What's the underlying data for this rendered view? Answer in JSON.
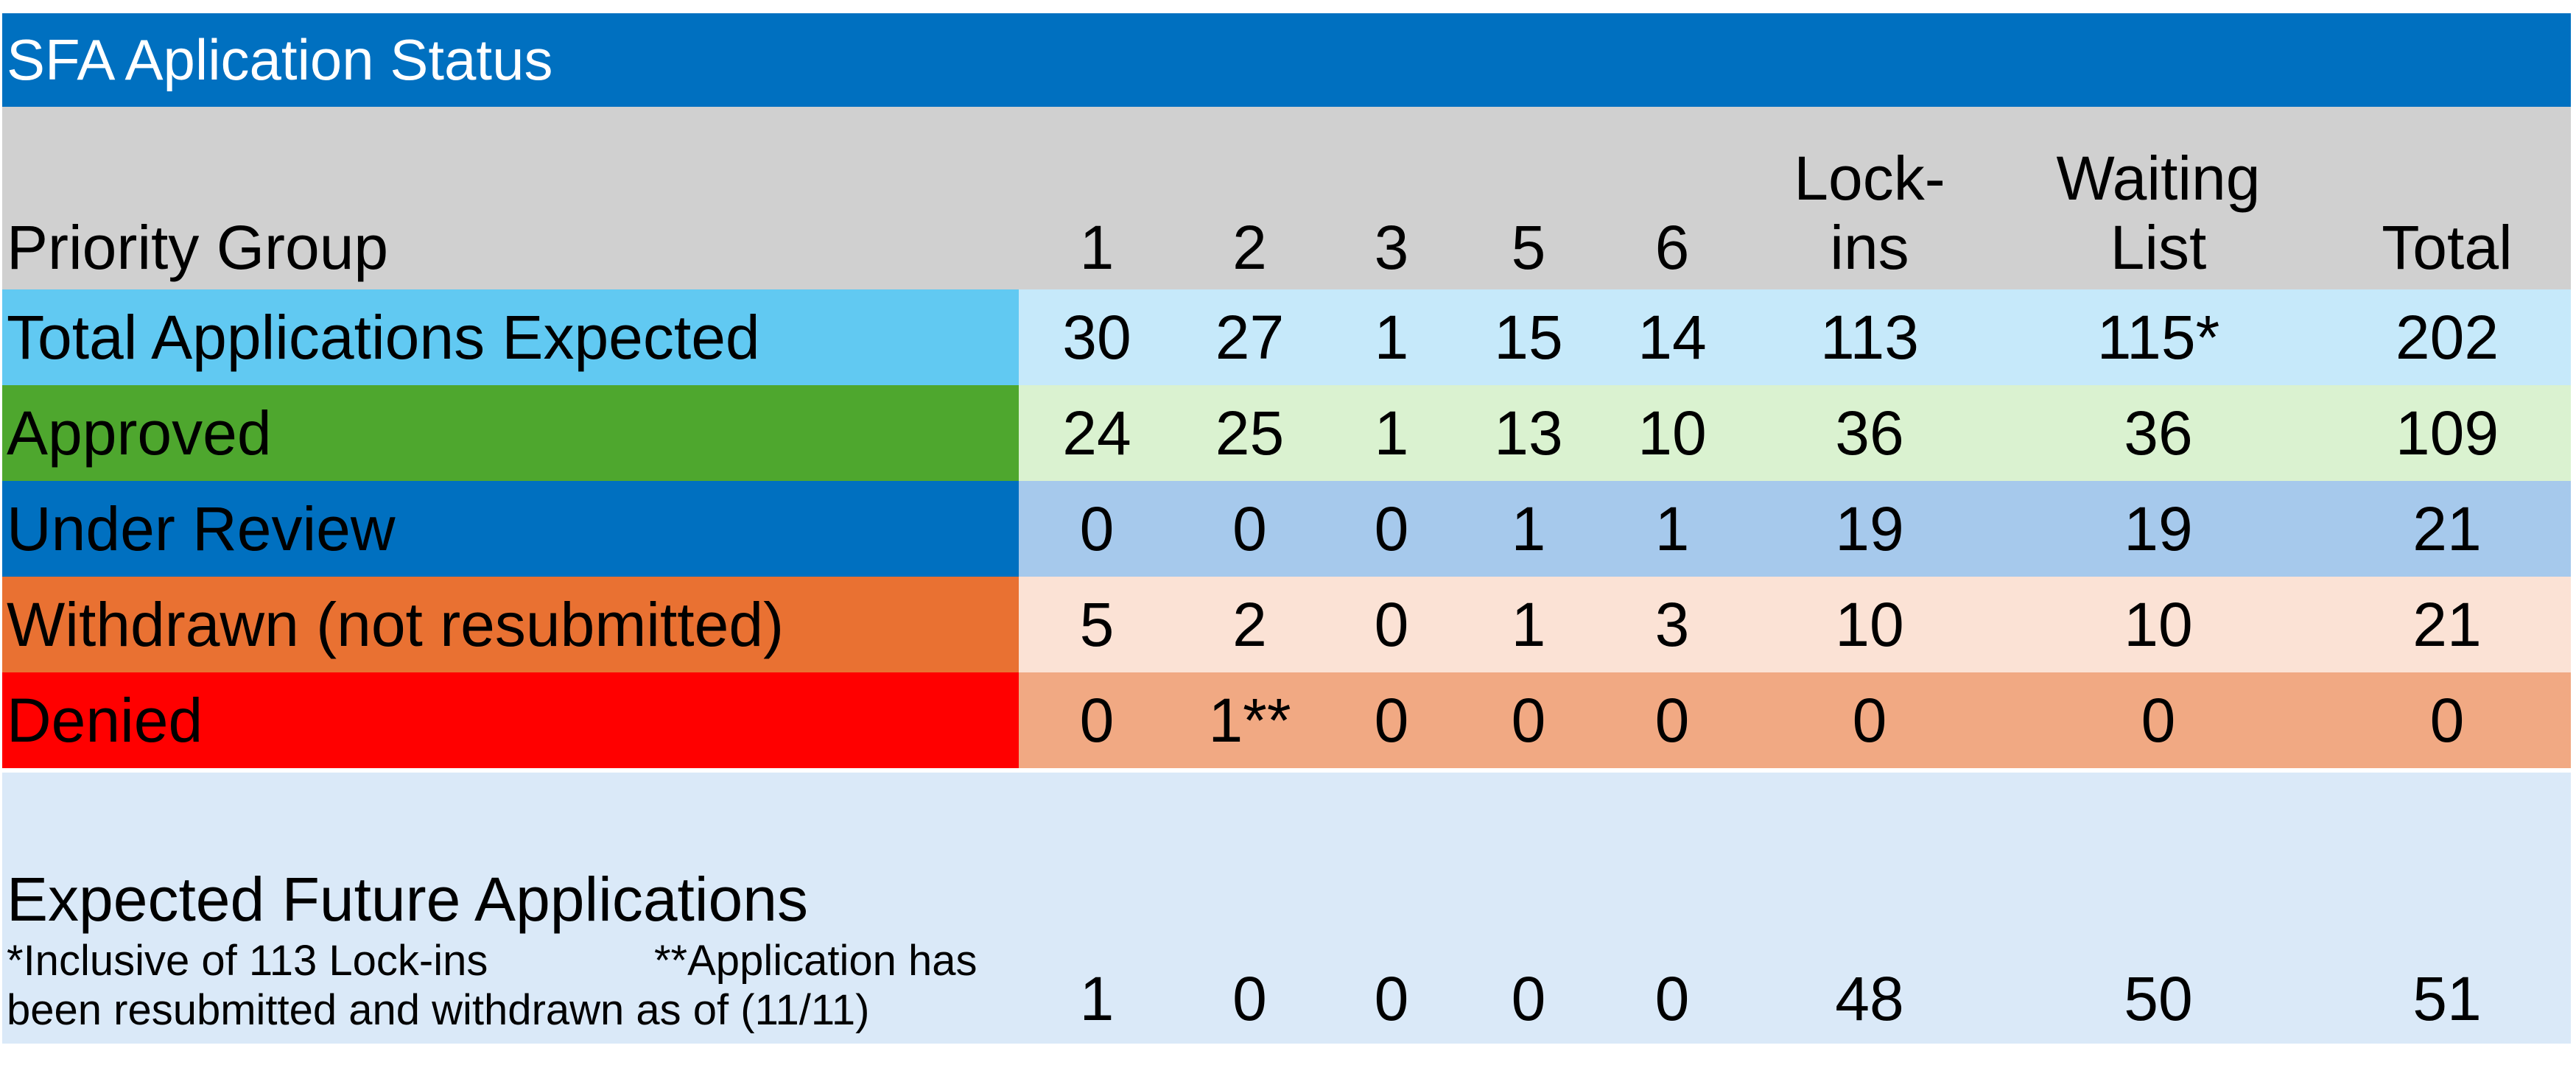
{
  "title": "SFA Aplication Status",
  "header": {
    "label": "Priority Group",
    "columns": [
      "1",
      "2",
      "3",
      "5",
      "6",
      "Lock-\nins",
      "Waiting\nList",
      "Total"
    ]
  },
  "rows": [
    {
      "label": "Total Applications Expected",
      "label_color": "#61C9F2",
      "cell_color": "#C6E9FA",
      "values": [
        "30",
        "27",
        "1",
        "15",
        "14",
        "113",
        "115*",
        "202"
      ]
    },
    {
      "label": "Approved",
      "label_color": "#4EA72E",
      "cell_color": "#DAF2D0",
      "values": [
        "24",
        "25",
        "1",
        "13",
        "10",
        "36",
        "36",
        "109"
      ]
    },
    {
      "label": "Under Review",
      "label_color": "#0070C0",
      "cell_color": "#A6C9EC",
      "values": [
        "0",
        "0",
        "0",
        "1",
        "1",
        "19",
        "19",
        "21"
      ]
    },
    {
      "label": "Withdrawn (not resubmitted)",
      "label_color": "#E97132",
      "cell_color": "#FBE2D5",
      "values": [
        "5",
        "2",
        "0",
        "1",
        "3",
        "10",
        "10",
        "21"
      ]
    },
    {
      "label": "Denied",
      "label_color": "#FF0000",
      "cell_color": "#F1A983",
      "values": [
        "0",
        "1**",
        "0",
        "0",
        "0",
        "0",
        "0",
        "0"
      ]
    }
  ],
  "future": {
    "label": "Expected Future Applications",
    "note": "*Inclusive of 113 Lock-ins              **Application has been resubmitted and withdrawn as of (11/11)",
    "values": [
      "1",
      "0",
      "0",
      "0",
      "0",
      "48",
      "50",
      "51"
    ]
  },
  "colors": {
    "title_bg": "#0070C0",
    "header_bg": "#D0D0D0",
    "future_bg": "#DAE9F8"
  }
}
